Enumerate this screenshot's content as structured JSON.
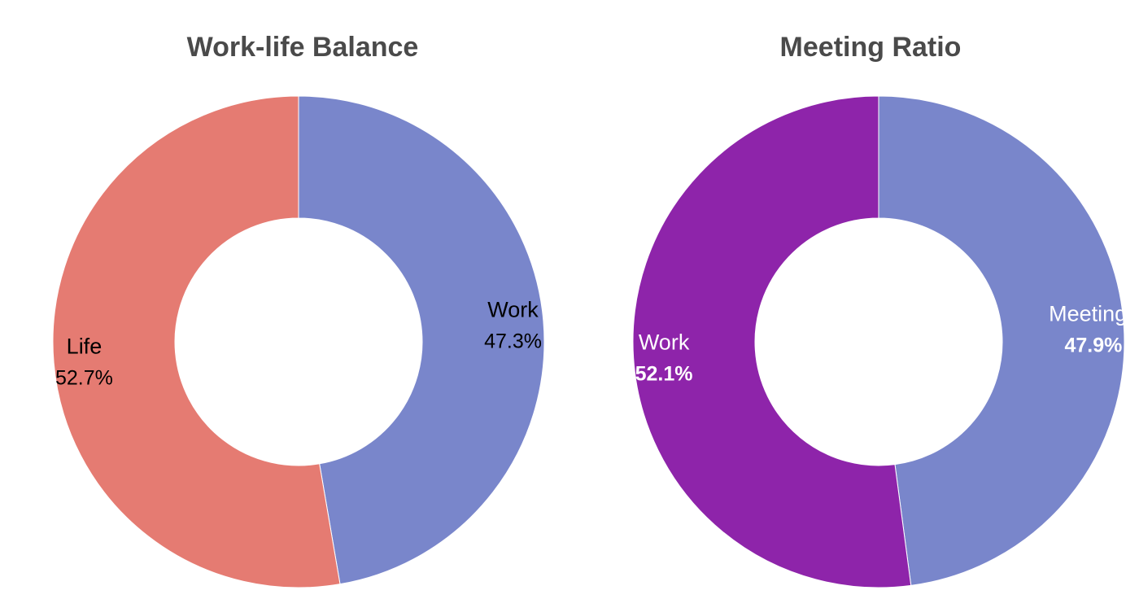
{
  "chart_data": [
    {
      "type": "pie",
      "title": "Work-life Balance",
      "slices": [
        {
          "label": "Work",
          "value": 47.3,
          "display": "47.3%",
          "color": "#7986CB",
          "text_color": "#000000",
          "value_bold": false
        },
        {
          "label": "Life",
          "value": 52.7,
          "display": "52.7%",
          "color": "#E57B72",
          "text_color": "#000000",
          "value_bold": false
        }
      ]
    },
    {
      "type": "pie",
      "title": "Meeting Ratio",
      "slices": [
        {
          "label": "Meetings",
          "value": 47.9,
          "display": "47.9%",
          "color": "#7986CB",
          "text_color": "#ffffff",
          "value_bold": true
        },
        {
          "label": "Work",
          "value": 52.1,
          "display": "52.1%",
          "color": "#8E24AA",
          "text_color": "#ffffff",
          "value_bold": true
        }
      ]
    }
  ]
}
